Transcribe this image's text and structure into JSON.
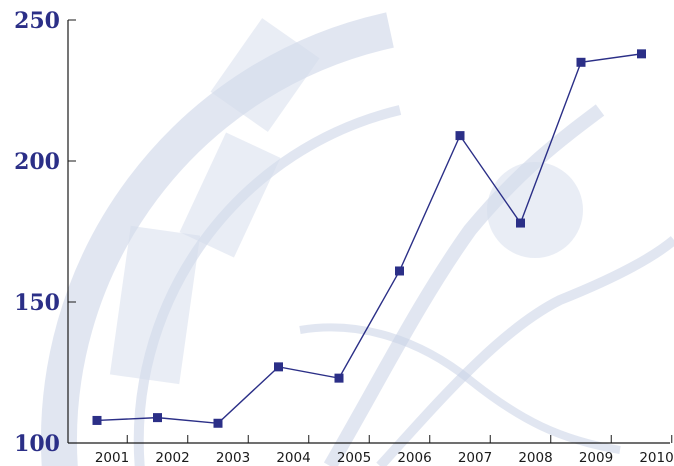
{
  "chart_data": {
    "type": "line",
    "title": "",
    "xlabel": "",
    "ylabel": "",
    "categories": [
      "2001",
      "2002",
      "2003",
      "2004",
      "2005",
      "2006",
      "2007",
      "2008",
      "2009",
      "2010"
    ],
    "series": [
      {
        "values": [
          108,
          109,
          107,
          127,
          123,
          161,
          209,
          178,
          235,
          238
        ]
      }
    ],
    "ylim": [
      100,
      250
    ],
    "yticks": [
      100,
      150,
      200,
      250
    ],
    "grid": false,
    "legend": "none",
    "marker": "square",
    "colors": {
      "series": "#2b2f87",
      "axis": "#1a1a1a",
      "ytick_text": "#2b2f87"
    }
  }
}
